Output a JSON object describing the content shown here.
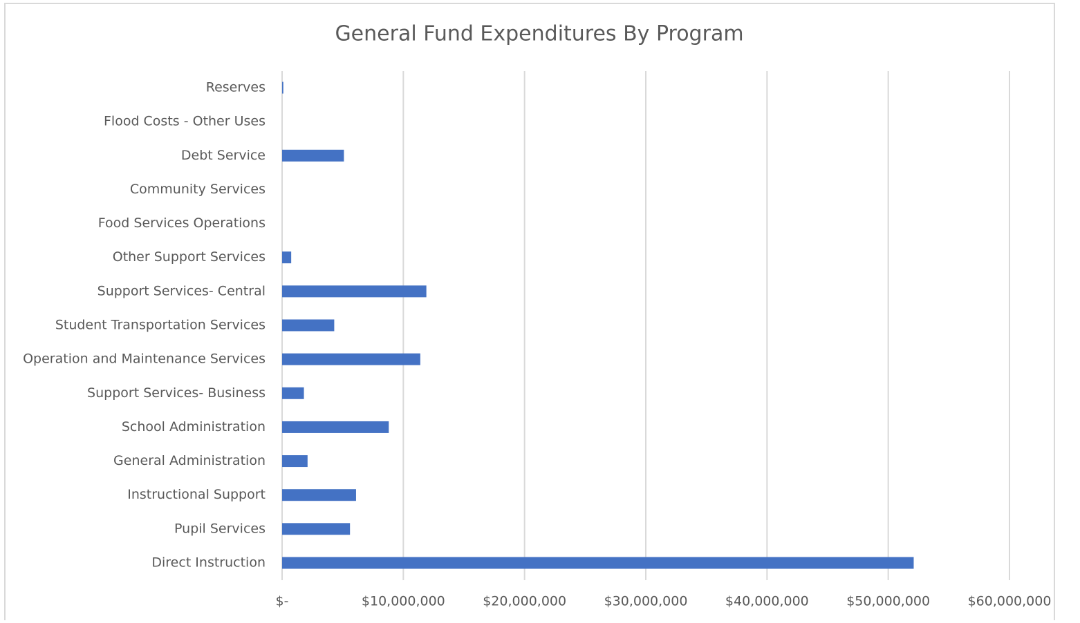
{
  "chart_data": {
    "type": "hbar",
    "title": "General Fund Expenditures By Program",
    "categories": [
      "Reserves",
      "Flood Costs - Other Uses",
      "Debt Service",
      "Community Services",
      "Food Services Operations",
      "Other Support Services",
      "Support Services- Central",
      "Student Transportation Services",
      "Operation and Maintenance Services",
      "Support Services- Business",
      "School Administration",
      "General Administration",
      "Instructional Support",
      "Pupil Services",
      "Direct Instruction"
    ],
    "values": [
      100000,
      0,
      5100000,
      0,
      0,
      750000,
      11900000,
      4300000,
      11400000,
      1800000,
      8800000,
      2100000,
      6100000,
      5600000,
      52100000
    ],
    "color": "#4472c4",
    "xlim": [
      0,
      60000000
    ],
    "xticks": [
      {
        "value": 0,
        "label": "$-"
      },
      {
        "value": 10000000,
        "label": "$10,000,000"
      },
      {
        "value": 20000000,
        "label": "$20,000,000"
      },
      {
        "value": 30000000,
        "label": "$30,000,000"
      },
      {
        "value": 40000000,
        "label": "$40,000,000"
      },
      {
        "value": 50000000,
        "label": "$50,000,000"
      },
      {
        "value": 60000000,
        "label": "$60,000,000"
      }
    ],
    "grid": true
  }
}
